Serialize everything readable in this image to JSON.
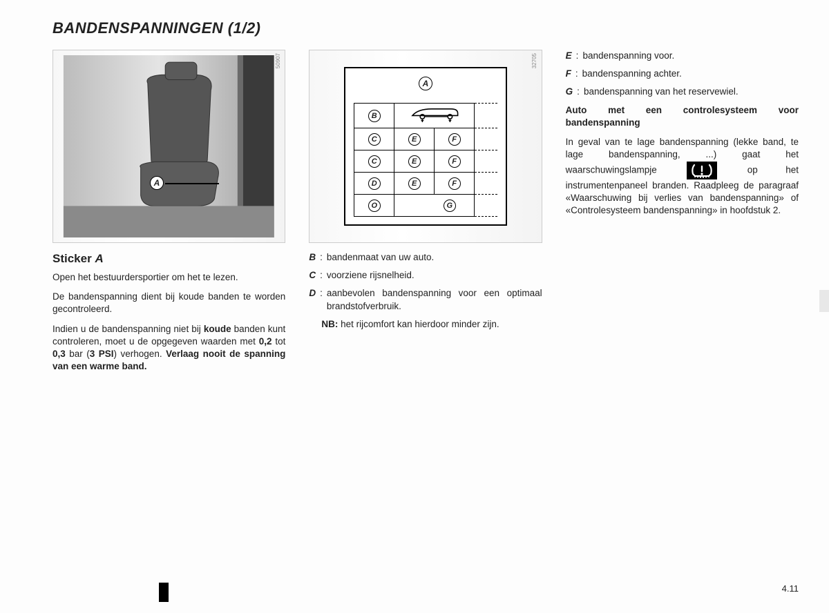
{
  "page_title": "BANDENSPANNINGEN (1/2)",
  "page_number": "4.11",
  "fig1": {
    "image_id": "50907",
    "callout": "A"
  },
  "fig2": {
    "image_id": "32705",
    "top_label": "A",
    "rows": [
      [
        "B",
        "",
        ""
      ],
      [
        "C",
        "E",
        "F"
      ],
      [
        "C",
        "E",
        "F"
      ],
      [
        "D",
        "E",
        "F"
      ],
      [
        "O",
        "G",
        ""
      ]
    ]
  },
  "col1": {
    "heading_prefix": "Sticker ",
    "heading_label": "A",
    "p1": "Open het bestuurdersportier om het te lezen.",
    "p2": "De bandenspanning dient bij koude banden te worden gecontroleerd.",
    "p3_a": "Indien u de bandenspanning niet bij ",
    "p3_b": "koude",
    "p3_c": " banden kunt controleren, moet u de opgegeven waarden met ",
    "p3_d": "0,2",
    "p3_e": " tot ",
    "p3_f": "0,3",
    "p3_g": " bar (",
    "p3_h": "3 PSI",
    "p3_i": ") verhogen. ",
    "p3_j": "Verlaag nooit de spanning van een warme band."
  },
  "col2": {
    "defs": [
      {
        "label": "B",
        "sep": ": ",
        "text": "bandenmaat van uw auto."
      },
      {
        "label": "C",
        "sep": ": ",
        "text": "voorziene rijsnelheid."
      },
      {
        "label": "D",
        "sep": " : ",
        "text": "aanbevolen bandenspanning voor een optimaal brandstofverbruik."
      }
    ],
    "nb_label": "NB:",
    "nb_text": " het rijcomfort kan hierdoor minder zijn."
  },
  "col3": {
    "defs": [
      {
        "label": "E",
        "sep": ": ",
        "text": "bandenspanning voor."
      },
      {
        "label": "F",
        "sep": ": ",
        "text": "bandenspanning achter."
      },
      {
        "label": "G",
        "sep": ": ",
        "text": "bandenspanning van het reservewiel."
      }
    ],
    "heading": "Auto met een controlesysteem voor bandenspanning",
    "p_a": "In geval van te lage bandenspanning (lekke band, te lage bandenspanning, ...) gaat het waarschuwingslampje ",
    "p_b": " op het instrumentenpaneel branden. Raadpleeg de paragraaf «Waarschuwing bij verlies van bandenspanning» of «Controlesysteem bandenspanning» in hoofdstuk 2."
  },
  "colors": {
    "text": "#222222",
    "figure_border": "#cccccc",
    "black": "#000000",
    "edge_tab": "#e8e8e8",
    "bg": "#fdfdfd"
  }
}
